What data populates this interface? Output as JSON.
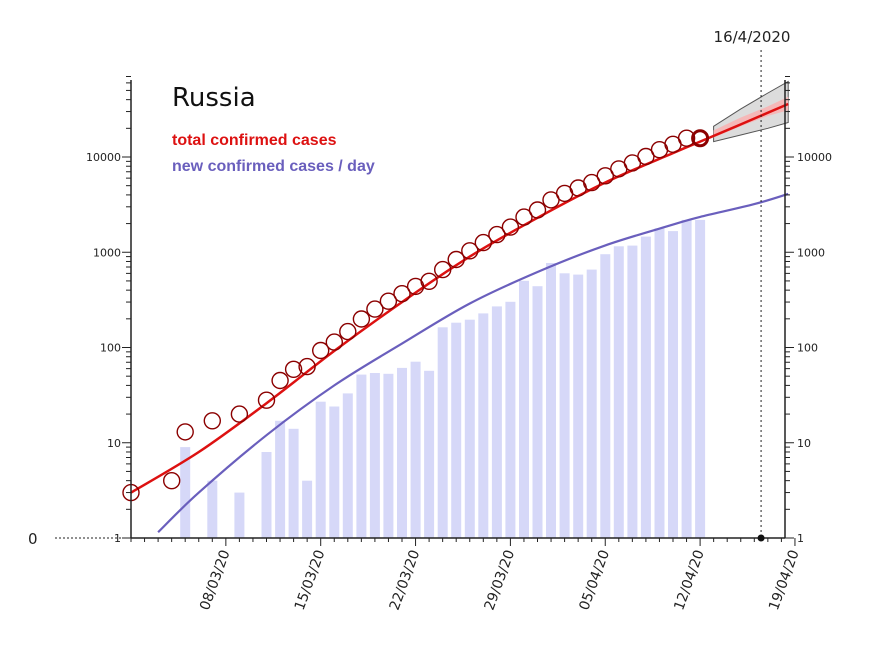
{
  "chart_data": {
    "type": "bar",
    "title": "Russia",
    "y_scale": "log",
    "ylim": [
      1,
      70000
    ],
    "y_ticks": [
      1,
      10,
      100,
      1000,
      10000
    ],
    "y_tick_labels": [
      "1",
      "10",
      "100",
      "1000",
      "10000"
    ],
    "x_start_date": "2020-03-01",
    "x_end_date": "2020-04-19",
    "x_tick_labels": [
      "08/03/20",
      "15/03/20",
      "22/03/20",
      "29/03/20",
      "05/04/20",
      "12/04/20",
      "19/04/20"
    ],
    "x_tick_day_offsets": [
      7,
      14,
      21,
      28,
      35,
      42,
      49
    ],
    "zero_label": "0",
    "marker_date_label": "16/4/2020",
    "marker_day_offset": 46.5,
    "colors": {
      "total": "#dd1111",
      "total_marker": "#8b0000",
      "new_line": "#6a5fbd",
      "new_bars": "#d6d8f8",
      "band_outer": "#dcdcdc",
      "band_inner": "#f5b8b8"
    },
    "series": [
      {
        "name": "total confirmed cases",
        "kind": "scatter",
        "day_offsets": [
          0,
          3,
          4,
          6,
          8,
          10,
          11,
          12,
          13,
          14,
          15,
          16,
          17,
          18,
          19,
          20,
          21,
          22,
          23,
          24,
          25,
          26,
          27,
          28,
          29,
          30,
          31,
          32,
          33,
          34,
          35,
          36,
          37,
          38,
          39,
          40,
          41,
          42
        ],
        "values": [
          3,
          4,
          13,
          17,
          20,
          28,
          45,
          59,
          63,
          93,
          114,
          147,
          199,
          253,
          306,
          367,
          438,
          495,
          658,
          840,
          1036,
          1264,
          1534,
          1836,
          2337,
          2777,
          3548,
          4149,
          4731,
          5389,
          6343,
          7497,
          8672,
          10131,
          11917,
          13584,
          15770,
          15770
        ]
      },
      {
        "name": "new confirmed cases / day",
        "kind": "bar",
        "day_offsets": [
          4,
          6,
          8,
          10,
          11,
          12,
          13,
          14,
          15,
          16,
          17,
          18,
          19,
          20,
          21,
          22,
          23,
          24,
          25,
          26,
          27,
          28,
          29,
          30,
          31,
          32,
          33,
          34,
          35,
          36,
          37,
          38,
          39,
          40,
          41,
          42
        ],
        "values": [
          9,
          4,
          3,
          8,
          17,
          14,
          4,
          27,
          24,
          33,
          52,
          54,
          53,
          61,
          71,
          57,
          163,
          182,
          196,
          228,
          270,
          302,
          501,
          440,
          771,
          601,
          582,
          658,
          954,
          1154,
          1175,
          1459,
          1786,
          1667,
          2186,
          2186
        ]
      }
    ],
    "fit_lines": [
      {
        "name": "total confirmed cases fit",
        "day_offsets": [
          0,
          5,
          10,
          15,
          20,
          25,
          30,
          35,
          40,
          42,
          45,
          48.5
        ],
        "values": [
          3,
          8,
          26,
          92,
          300,
          900,
          2300,
          5400,
          11000,
          14500,
          22000,
          36000
        ]
      },
      {
        "name": "new confirmed cases / day fit",
        "day_offsets": [
          2,
          5,
          10,
          15,
          20,
          25,
          30,
          35,
          40,
          42,
          46,
          48.5
        ],
        "values": [
          1.15,
          3,
          12,
          40,
          110,
          290,
          620,
          1180,
          1950,
          2350,
          3200,
          4100
        ]
      }
    ],
    "forecast_band": {
      "day_offsets": [
        43,
        45,
        47,
        48.5
      ],
      "outer_lower": [
        14500,
        17000,
        20000,
        23000
      ],
      "outer_upper": [
        21000,
        32000,
        47000,
        62000
      ],
      "inner_lower": [
        16000,
        21000,
        27000,
        31000
      ],
      "inner_upper": [
        19000,
        26000,
        34000,
        43000
      ]
    }
  }
}
